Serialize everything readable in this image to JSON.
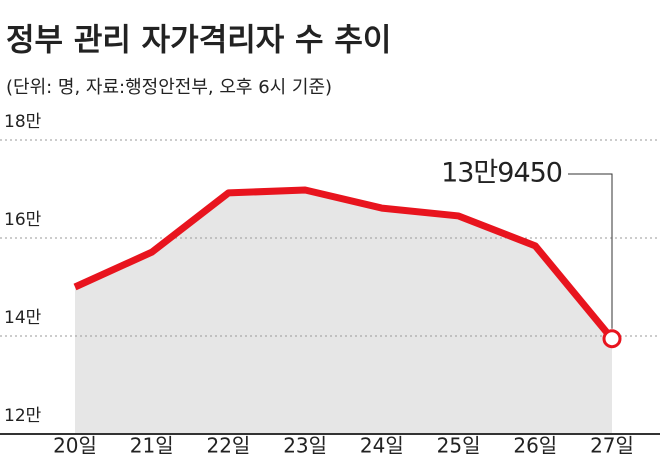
{
  "chart_data": {
    "type": "line",
    "title": "정부 관리 자가격리자 수 추이",
    "subtitle": "(단위: 명, 자료:행정안전부, 오후 6시 기준)",
    "categories": [
      "20일",
      "21일",
      "22일",
      "23일",
      "24일",
      "25일",
      "26일",
      "27일"
    ],
    "series": [
      {
        "color": "#e8141e",
        "area_color": "#e6e6e6",
        "values": [
          150000,
          157100,
          169200,
          169800,
          166100,
          164500,
          158400,
          139450
        ],
        "value_labels": [
          null,
          null,
          null,
          null,
          null,
          null,
          null,
          "13만9450"
        ]
      }
    ],
    "ylim": [
      120000,
      180000
    ],
    "yticks": [
      {
        "value": 120000,
        "label": "12만"
      },
      {
        "value": 140000,
        "label": "14만"
      },
      {
        "value": 160000,
        "label": "16만"
      },
      {
        "value": 180000,
        "label": "18만"
      }
    ],
    "grid": true
  }
}
